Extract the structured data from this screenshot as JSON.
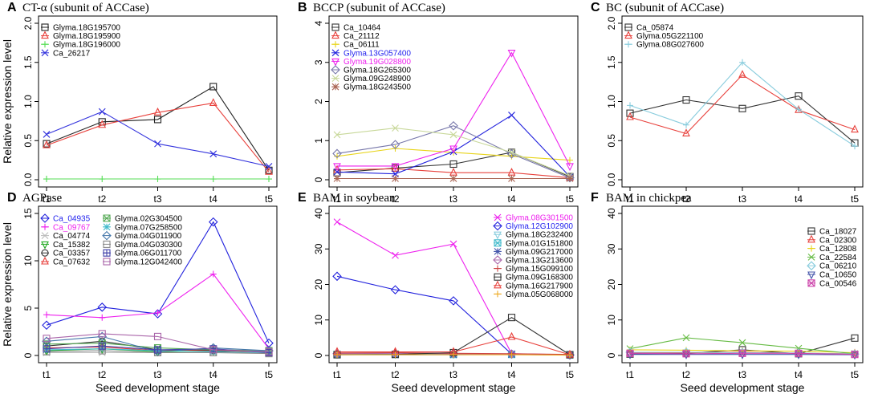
{
  "figure": {
    "xlabel": "Seed development stage",
    "ylabel": "Relative expression level",
    "categories": [
      "t1",
      "t2",
      "t3",
      "t4",
      "t5"
    ]
  },
  "chart_data": [
    {
      "type": "line",
      "letter": "A",
      "title": "CT-α (subunit of ACCase)",
      "ylim": [
        0,
        2.0
      ],
      "yticks": [
        "0.0",
        "0.5",
        "1.0",
        "1.5",
        "2.0"
      ],
      "legend_position": "top-left",
      "series": [
        {
          "name": "Glyma.18G195700",
          "color": "#222222",
          "marker": "square",
          "legend_color": "#000000",
          "values": [
            0.46,
            0.74,
            0.77,
            1.19,
            0.12
          ]
        },
        {
          "name": "Glyma.18G195900",
          "color": "#e8413c",
          "marker": "triangle",
          "legend_color": "#000000",
          "values": [
            0.44,
            0.7,
            0.86,
            0.98,
            0.1
          ]
        },
        {
          "name": "Glyma.18G196000",
          "color": "#55dd55",
          "marker": "plus",
          "legend_color": "#000000",
          "values": [
            0.01,
            0.01,
            0.01,
            0.01,
            0.01
          ]
        },
        {
          "name": "Ca_26217",
          "color": "#3333dd",
          "marker": "x",
          "legend_color": "#000000",
          "values": [
            0.58,
            0.87,
            0.46,
            0.33,
            0.17
          ]
        }
      ]
    },
    {
      "type": "line",
      "letter": "B",
      "title": "BCCP (subunit of ACCase)",
      "ylim": [
        0,
        4
      ],
      "yticks": [
        "0",
        "1",
        "2",
        "3",
        "4"
      ],
      "legend_position": "top-left",
      "series": [
        {
          "name": "Ca_10464",
          "color": "#333333",
          "marker": "square",
          "legend_color": "#000000",
          "values": [
            0.18,
            0.3,
            0.4,
            0.7,
            0.08
          ]
        },
        {
          "name": "Ca_21112",
          "color": "#e8413c",
          "marker": "triangle",
          "legend_color": "#000000",
          "values": [
            0.25,
            0.28,
            0.18,
            0.18,
            0.05
          ]
        },
        {
          "name": "Ca_06111",
          "color": "#e8d41a",
          "marker": "plus",
          "legend_color": "#000000",
          "values": [
            0.6,
            0.8,
            0.7,
            0.6,
            0.5
          ]
        },
        {
          "name": "Glyma.13G057400",
          "color": "#2222dd",
          "marker": "x",
          "legend_color": "#2222ee",
          "values": [
            0.2,
            0.15,
            0.72,
            1.65,
            0.08
          ]
        },
        {
          "name": "Glyma.19G028800",
          "color": "#ee22ee",
          "marker": "triangle-down",
          "legend_color": "#ee22ee",
          "values": [
            0.35,
            0.35,
            0.8,
            3.25,
            0.35
          ]
        },
        {
          "name": "Glyma.18G265300",
          "color": "#7777aa",
          "marker": "diamond",
          "legend_color": "#000000",
          "values": [
            0.67,
            0.9,
            1.38,
            0.66,
            0.05
          ]
        },
        {
          "name": "Glyma.09G248900",
          "color": "#c8d89a",
          "marker": "x",
          "legend_color": "#000000",
          "values": [
            1.15,
            1.32,
            1.15,
            0.7,
            0.1
          ]
        },
        {
          "name": "Glyma.18G243500",
          "color": "#aa6655",
          "marker": "star",
          "legend_color": "#000000",
          "values": [
            0.03,
            0.03,
            0.03,
            0.03,
            0.03
          ]
        }
      ]
    },
    {
      "type": "line",
      "letter": "C",
      "title": "BC (subunit of ACCase)",
      "ylim": [
        0,
        2.0
      ],
      "yticks": [
        "0.0",
        "0.5",
        "1.0",
        "1.5",
        "2.0"
      ],
      "legend_position": "top-left",
      "series": [
        {
          "name": "Ca_05874",
          "color": "#333333",
          "marker": "square",
          "legend_color": "#000000",
          "values": [
            0.85,
            1.02,
            0.91,
            1.07,
            0.47
          ]
        },
        {
          "name": "Glyma.05G221100",
          "color": "#e8413c",
          "marker": "triangle",
          "legend_color": "#000000",
          "values": [
            0.8,
            0.59,
            1.34,
            0.89,
            0.64
          ]
        },
        {
          "name": "Glyma.08G027600",
          "color": "#88ccdd",
          "marker": "plus",
          "legend_color": "#000000",
          "values": [
            0.95,
            0.7,
            1.5,
            0.9,
            0.43
          ]
        }
      ]
    },
    {
      "type": "line",
      "letter": "D",
      "title": "AGPase",
      "ylim": [
        0,
        15
      ],
      "yticks": [
        "0",
        "5",
        "10",
        "15"
      ],
      "legend_position": "top-left",
      "series": [
        {
          "name": "Ca_04935",
          "color": "#2222dd",
          "marker": "diamond",
          "legend_color": "#2222ee",
          "values": [
            3.2,
            5.1,
            4.4,
            14.1,
            1.3
          ]
        },
        {
          "name": "Ca_09767",
          "color": "#ee22ee",
          "marker": "plus",
          "legend_color": "#ee22ee",
          "values": [
            4.3,
            4.0,
            4.5,
            8.6,
            0.7
          ]
        },
        {
          "name": "Ca_04774",
          "color": "#bbbbbb",
          "marker": "x",
          "legend_color": "#000000",
          "values": [
            0.3,
            0.3,
            0.3,
            0.3,
            0.3
          ]
        },
        {
          "name": "Ca_15382",
          "color": "#22aa22",
          "marker": "triangle-down",
          "legend_color": "#000000",
          "values": [
            0.5,
            0.7,
            0.4,
            0.5,
            0.4
          ]
        },
        {
          "name": "Ca_03357",
          "color": "#333333",
          "marker": "circle",
          "legend_color": "#000000",
          "values": [
            1.0,
            1.5,
            0.6,
            0.5,
            0.4
          ]
        },
        {
          "name": "Ca_07632",
          "color": "#e8413c",
          "marker": "triangle",
          "legend_color": "#000000",
          "values": [
            0.8,
            0.9,
            0.5,
            0.6,
            0.3
          ]
        },
        {
          "name": "Glyma.02G304500",
          "color": "#55aa55",
          "marker": "square-x",
          "legend_color": "#000000",
          "values": [
            1.2,
            1.3,
            0.8,
            0.6,
            0.5
          ]
        },
        {
          "name": "Glyma.07G258500",
          "color": "#44bbcc",
          "marker": "star",
          "legend_color": "#000000",
          "values": [
            0.6,
            0.7,
            0.5,
            0.4,
            0.3
          ]
        },
        {
          "name": "Glyma.04G011900",
          "color": "#4477aa",
          "marker": "diamond",
          "legend_color": "#000000",
          "values": [
            1.5,
            2.0,
            0.4,
            0.8,
            0.5
          ]
        },
        {
          "name": "Glyma.04G030300",
          "color": "#888888",
          "marker": "square",
          "legend_color": "#000000",
          "values": [
            0.4,
            0.5,
            0.3,
            0.3,
            0.2
          ]
        },
        {
          "name": "Glyma.06G011700",
          "color": "#4444aa",
          "marker": "square-plus",
          "legend_color": "#000000",
          "values": [
            0.7,
            1.0,
            0.6,
            0.7,
            0.3
          ]
        },
        {
          "name": "Glyma.12G042400",
          "color": "#aa66aa",
          "marker": "square",
          "legend_color": "#000000",
          "values": [
            1.8,
            2.3,
            2.0,
            0.6,
            0.4
          ]
        }
      ]
    },
    {
      "type": "line",
      "letter": "E",
      "title": "BAM in soybean",
      "ylim": [
        0,
        40
      ],
      "yticks": [
        "0",
        "10",
        "20",
        "30",
        "40"
      ],
      "legend_position": "top-right",
      "series": [
        {
          "name": "Glyma.08G301500",
          "color": "#ee22ee",
          "marker": "x",
          "legend_color": "#ee22ee",
          "values": [
            37.6,
            28.2,
            31.4,
            0.5,
            0.2
          ]
        },
        {
          "name": "Glyma.12G102900",
          "color": "#2222dd",
          "marker": "diamond",
          "legend_color": "#2222ee",
          "values": [
            22.3,
            18.5,
            15.4,
            0.4,
            0.1
          ]
        },
        {
          "name": "Glyma.18G232400",
          "color": "#88ccdd",
          "marker": "triangle-down",
          "legend_color": "#000000",
          "values": [
            0.4,
            0.4,
            0.4,
            0.4,
            0.2
          ]
        },
        {
          "name": "Glyma.01G151800",
          "color": "#44bbcc",
          "marker": "square-x",
          "legend_color": "#000000",
          "values": [
            0.3,
            0.3,
            0.3,
            0.3,
            0.2
          ]
        },
        {
          "name": "Glyma.09G217000",
          "color": "#4455aa",
          "marker": "star",
          "legend_color": "#000000",
          "values": [
            0.2,
            0.2,
            0.2,
            0.3,
            0.1
          ]
        },
        {
          "name": "Glyma.13G213600",
          "color": "#aa66aa",
          "marker": "diamond",
          "legend_color": "#000000",
          "values": [
            0.5,
            0.6,
            0.5,
            0.4,
            0.2
          ]
        },
        {
          "name": "Glyma.15G099100",
          "color": "#cc4444",
          "marker": "plus",
          "legend_color": "#000000",
          "values": [
            0.7,
            0.8,
            0.6,
            0.5,
            0.3
          ]
        },
        {
          "name": "Glyma.09G168300",
          "color": "#333333",
          "marker": "square",
          "legend_color": "#000000",
          "values": [
            0.2,
            0.3,
            0.8,
            10.7,
            0.2
          ]
        },
        {
          "name": "Glyma.16G217900",
          "color": "#e8413c",
          "marker": "triangle",
          "legend_color": "#000000",
          "values": [
            1.0,
            1.0,
            1.0,
            5.2,
            0.2
          ]
        },
        {
          "name": "Glyma.05G068000",
          "color": "#eeaa22",
          "marker": "plus",
          "legend_color": "#000000",
          "values": [
            0.2,
            0.2,
            0.2,
            0.2,
            0.1
          ]
        }
      ]
    },
    {
      "type": "line",
      "letter": "F",
      "title": "BAM in chickpea",
      "ylim": [
        0,
        40
      ],
      "yticks": [
        "0",
        "10",
        "20",
        "30",
        "40"
      ],
      "legend_position": "right",
      "series": [
        {
          "name": "Ca_18027",
          "color": "#333333",
          "marker": "square",
          "legend_color": "#000000",
          "values": [
            0.4,
            0.6,
            1.6,
            0.5,
            4.9
          ]
        },
        {
          "name": "Ca_02300",
          "color": "#e8413c",
          "marker": "triangle",
          "legend_color": "#000000",
          "values": [
            0.7,
            0.8,
            0.9,
            0.6,
            0.5
          ]
        },
        {
          "name": "Ca_12808",
          "color": "#e8d41a",
          "marker": "plus",
          "legend_color": "#000000",
          "values": [
            1.6,
            1.5,
            1.3,
            1.2,
            0.8
          ]
        },
        {
          "name": "Ca_22584",
          "color": "#66bb44",
          "marker": "x",
          "legend_color": "#000000",
          "values": [
            1.9,
            5.0,
            3.6,
            2.0,
            0.5
          ]
        },
        {
          "name": "Ca_06210",
          "color": "#88ccdd",
          "marker": "diamond",
          "legend_color": "#000000",
          "values": [
            0.9,
            0.9,
            0.8,
            0.7,
            0.4
          ]
        },
        {
          "name": "Ca_10650",
          "color": "#4455aa",
          "marker": "triangle-down",
          "legend_color": "#000000",
          "values": [
            0.3,
            0.3,
            0.3,
            0.3,
            0.2
          ]
        },
        {
          "name": "Ca_00546",
          "color": "#cc44aa",
          "marker": "square-x",
          "legend_color": "#000000",
          "values": [
            0.6,
            0.5,
            0.6,
            0.6,
            0.3
          ]
        }
      ]
    }
  ]
}
